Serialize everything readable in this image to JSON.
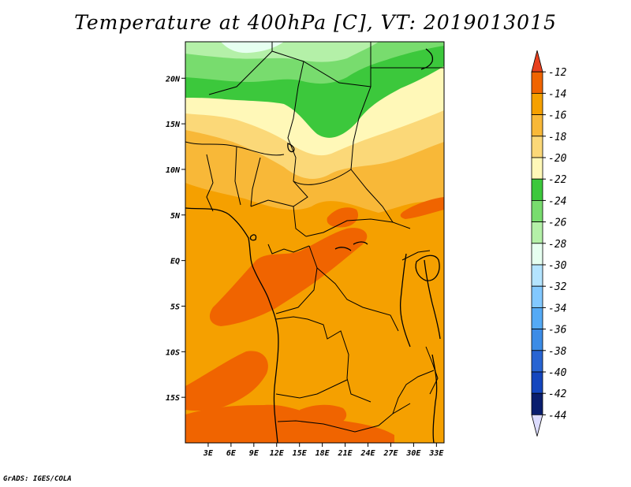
{
  "title": "Temperature at 400hPa [C], VT: 2019013015",
  "footer": "GrADS: IGES/COLA",
  "map": {
    "lon_range": [
      0,
      34
    ],
    "lat_range": [
      -20,
      24
    ],
    "lon_ticks": [
      {
        "value": 3,
        "label": "3E"
      },
      {
        "value": 6,
        "label": "6E"
      },
      {
        "value": 9,
        "label": "9E"
      },
      {
        "value": 12,
        "label": "12E"
      },
      {
        "value": 15,
        "label": "15E"
      },
      {
        "value": 18,
        "label": "18E"
      },
      {
        "value": 21,
        "label": "21E"
      },
      {
        "value": 24,
        "label": "24E"
      },
      {
        "value": 27,
        "label": "27E"
      },
      {
        "value": 30,
        "label": "30E"
      },
      {
        "value": 33,
        "label": "33E"
      }
    ],
    "lat_ticks": [
      {
        "value": 20,
        "label": "20N"
      },
      {
        "value": 15,
        "label": "15N"
      },
      {
        "value": 10,
        "label": "10N"
      },
      {
        "value": 5,
        "label": "5N"
      },
      {
        "value": 0,
        "label": "EQ"
      },
      {
        "value": -5,
        "label": "5S"
      },
      {
        "value": -10,
        "label": "10S"
      },
      {
        "value": -15,
        "label": "15S"
      }
    ]
  },
  "colorbar": {
    "labels": [
      "-12",
      "-14",
      "-16",
      "-18",
      "-20",
      "-22",
      "-24",
      "-26",
      "-28",
      "-30",
      "-32",
      "-34",
      "-36",
      "-38",
      "-40",
      "-42",
      "-44"
    ],
    "colors": [
      "#e8401e",
      "#f06400",
      "#f5a000",
      "#f8b838",
      "#fbd878",
      "#fff8b8",
      "#3cc83c",
      "#78dc6e",
      "#b4f0a8",
      "#e6fff0",
      "#b4e4ff",
      "#82c8ff",
      "#55aaf5",
      "#3c8ce6",
      "#2864d2",
      "#1446be",
      "#0a1e6e",
      "#dcdcff"
    ]
  },
  "colors": {
    "orange": "#f5a000",
    "dark_orange": "#f06400",
    "light_orange": "#f8b838",
    "pale_yellow": "#fbd878",
    "cream": "#fff8b8",
    "green": "#3cc83c",
    "light_green": "#78dc6e",
    "pale_green": "#b4f0a8",
    "ice": "#e6fff0"
  }
}
